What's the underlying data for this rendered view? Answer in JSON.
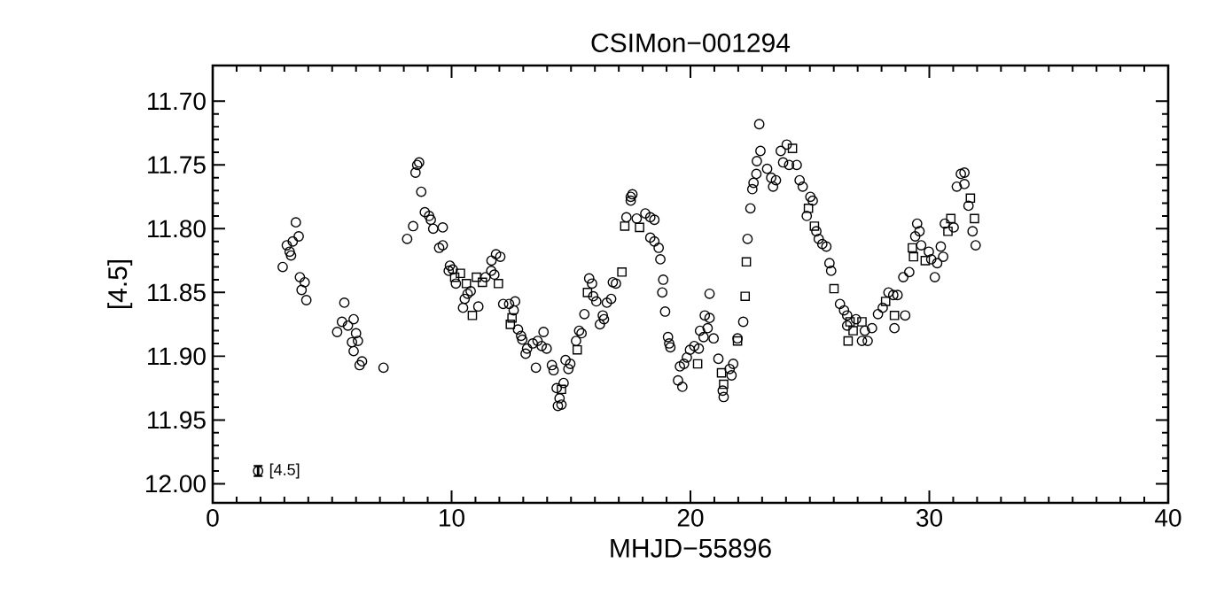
{
  "chart_data": {
    "type": "scatter",
    "title": "CSIMon−001294",
    "xlabel": "MHJD−55896",
    "ylabel": "[4.5]",
    "xlim": [
      0,
      40
    ],
    "xticks": [
      0,
      10,
      20,
      30,
      40
    ],
    "ylim": [
      12.015,
      11.672
    ],
    "yticks": [
      {
        "value": 11.7,
        "label": "11.70"
      },
      {
        "value": 11.75,
        "label": "11.75"
      },
      {
        "value": 11.8,
        "label": "11.80"
      },
      {
        "value": 11.85,
        "label": "11.85"
      },
      {
        "value": 11.9,
        "label": "11.90"
      },
      {
        "value": 11.95,
        "label": "11.95"
      },
      {
        "value": 12.0,
        "label": "12.00"
      }
    ],
    "grid": false,
    "series": [
      {
        "color": "#000000",
        "marker": "circle",
        "x": [
          3.48,
          3.6,
          3.35,
          3.1,
          3.22,
          3.28,
          2.93,
          3.65,
          3.85,
          3.72,
          3.92,
          5.51,
          5.41,
          5.66,
          5.21,
          5.9,
          6.0,
          5.83,
          6.08,
          5.9,
          6.25,
          6.15,
          7.15,
          8.64,
          8.56,
          8.49,
          8.73,
          8.39,
          8.14,
          8.88,
          9.06,
          9.13,
          9.23,
          9.48,
          9.63,
          9.63,
          9.93,
          10.05,
          9.88,
          10.18,
          10.8,
          10.67,
          10.55,
          10.48,
          11.12,
          11.42,
          11.66,
          11.79,
          11.67,
          11.86,
          12.04,
          12.16,
          12.41,
          12.66,
          12.6,
          12.78,
          12.91,
          12.96,
          13.16,
          13.1,
          13.4,
          13.6,
          13.85,
          13.77,
          13.98,
          13.53,
          14.2,
          14.27,
          14.77,
          14.97,
          14.69,
          14.89,
          14.4,
          14.52,
          14.45,
          14.6,
          15.21,
          15.34,
          15.44,
          15.56,
          15.76,
          15.88,
          15.93,
          16.06,
          16.21,
          16.38,
          16.33,
          16.5,
          16.68,
          16.75,
          16.88,
          17.32,
          17.5,
          17.57,
          17.5,
          17.75,
          18.11,
          18.32,
          18.49,
          18.32,
          18.49,
          18.67,
          18.74,
          18.86,
          18.82,
          18.94,
          19.06,
          19.11,
          19.16,
          19.56,
          19.73,
          19.48,
          19.66,
          19.85,
          19.98,
          20.16,
          20.35,
          20.4,
          20.6,
          20.8,
          20.72,
          20.55,
          20.97,
          20.8,
          21.17,
          21.35,
          21.39,
          21.64,
          21.79,
          21.72,
          21.97,
          22.21,
          22.39,
          22.51,
          22.59,
          22.64,
          22.76,
          22.78,
          22.93,
          22.88,
          23.21,
          23.38,
          23.46,
          23.58,
          23.78,
          23.88,
          24.03,
          24.13,
          24.45,
          24.57,
          24.7,
          25.02,
          25.12,
          24.87,
          25.27,
          25.37,
          25.52,
          25.69,
          25.82,
          25.89,
          26.26,
          26.43,
          26.56,
          26.56,
          26.93,
          27.3,
          27.18,
          27.42,
          27.6,
          27.85,
          28.05,
          28.29,
          28.49,
          28.54,
          28.91,
          28.67,
          28.99,
          29.16,
          29.41,
          29.49,
          29.59,
          29.66,
          29.98,
          30.08,
          30.23,
          30.33,
          30.48,
          30.58,
          30.65,
          31.02,
          31.15,
          31.32,
          31.47,
          31.47,
          31.64,
          31.81,
          31.94
        ],
        "values": [
          11.795,
          11.806,
          11.81,
          11.813,
          11.818,
          11.821,
          11.83,
          11.838,
          11.842,
          11.848,
          11.856,
          11.858,
          11.873,
          11.876,
          11.881,
          11.871,
          11.882,
          11.889,
          11.888,
          11.896,
          11.904,
          11.907,
          11.909,
          11.748,
          11.75,
          11.756,
          11.771,
          11.798,
          11.808,
          11.787,
          11.79,
          11.793,
          11.8,
          11.815,
          11.799,
          11.813,
          11.829,
          11.832,
          11.833,
          11.843,
          11.849,
          11.851,
          11.855,
          11.862,
          11.861,
          11.838,
          11.833,
          11.836,
          11.825,
          11.82,
          11.822,
          11.859,
          11.859,
          11.857,
          11.864,
          11.879,
          11.884,
          11.887,
          11.894,
          11.898,
          11.89,
          11.888,
          11.881,
          11.892,
          11.894,
          11.909,
          11.907,
          11.911,
          11.903,
          11.906,
          11.921,
          11.91,
          11.925,
          11.933,
          11.939,
          11.938,
          11.888,
          11.88,
          11.882,
          11.867,
          11.839,
          11.843,
          11.853,
          11.857,
          11.875,
          11.871,
          11.868,
          11.858,
          11.855,
          11.842,
          11.843,
          11.791,
          11.775,
          11.773,
          11.778,
          11.792,
          11.788,
          11.791,
          11.793,
          11.807,
          11.81,
          11.815,
          11.824,
          11.84,
          11.85,
          11.865,
          11.885,
          11.89,
          11.893,
          11.908,
          11.906,
          11.919,
          11.924,
          11.901,
          11.895,
          11.892,
          11.894,
          11.88,
          11.868,
          11.87,
          11.878,
          11.885,
          11.886,
          11.851,
          11.902,
          11.927,
          11.932,
          11.91,
          11.906,
          11.915,
          11.886,
          11.873,
          11.808,
          11.784,
          11.769,
          11.764,
          11.757,
          11.747,
          11.739,
          11.718,
          11.753,
          11.76,
          11.767,
          11.762,
          11.739,
          11.748,
          11.734,
          11.75,
          11.75,
          11.762,
          11.767,
          11.775,
          11.778,
          11.79,
          11.802,
          11.808,
          11.812,
          11.814,
          11.827,
          11.833,
          11.859,
          11.864,
          11.868,
          11.876,
          11.871,
          11.88,
          11.888,
          11.888,
          11.878,
          11.867,
          11.862,
          11.85,
          11.852,
          11.878,
          11.838,
          11.852,
          11.868,
          11.834,
          11.806,
          11.796,
          11.802,
          11.813,
          11.818,
          11.824,
          11.838,
          11.827,
          11.814,
          11.822,
          11.796,
          11.799,
          11.767,
          11.757,
          11.756,
          11.765,
          11.782,
          11.802,
          11.813
        ]
      },
      {
        "color": "#000000",
        "marker": "square",
        "x": [
          10.13,
          10.37,
          10.62,
          10.87,
          11.04,
          11.29,
          11.96,
          12.53,
          12.46,
          14.6,
          15.26,
          15.69,
          17.13,
          17.25,
          17.87,
          20.3,
          21.3,
          21.39,
          21.97,
          22.29,
          22.34,
          24.27,
          24.94,
          25.19,
          26.01,
          26.68,
          26.81,
          26.6,
          27.18,
          28.17,
          28.54,
          29.29,
          29.34,
          29.83,
          30.78,
          30.9,
          31.72,
          31.89
        ],
        "values": [
          11.838,
          11.835,
          11.843,
          11.868,
          11.838,
          11.842,
          11.843,
          11.87,
          11.875,
          11.926,
          11.895,
          11.85,
          11.834,
          11.798,
          11.799,
          11.906,
          11.913,
          11.922,
          11.888,
          11.853,
          11.826,
          11.737,
          11.784,
          11.798,
          11.847,
          11.873,
          11.88,
          11.888,
          11.873,
          11.857,
          11.868,
          11.815,
          11.822,
          11.825,
          11.802,
          11.792,
          11.776,
          11.792
        ]
      },
      {
        "name": "[4.5]",
        "color": "#000000",
        "marker": "circle",
        "x": [
          1.9
        ],
        "values": [
          11.99
        ],
        "errors": [
          0.004
        ]
      }
    ]
  }
}
